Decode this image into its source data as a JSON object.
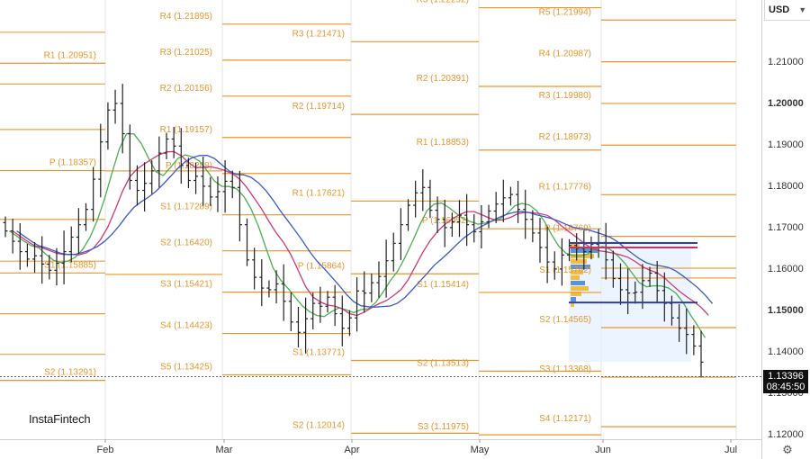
{
  "brand": "InstaFintech",
  "currency": "USD",
  "current_price": {
    "value": "1.13396",
    "time": "08:45:50"
  },
  "settings_icon": "gear-icon",
  "colors": {
    "pivot": "#e8962e",
    "sma_fast": "#4caf50",
    "sma_mid": "#d0387a",
    "sma_slow": "#3a5bc7",
    "profile": "#f5b323",
    "profile_alt": "#3b82d6"
  },
  "chart_data": {
    "type": "bar",
    "instrument": "EUR/USD",
    "ylim": [
      1.118,
      1.224
    ],
    "y_ticks": [
      "1.21000",
      "1.20000",
      "1.19000",
      "1.18000",
      "1.17000",
      "1.16000",
      "1.15000",
      "1.14000",
      "1.13000",
      "1.12000"
    ],
    "y_tick_bold": [
      "1.20000",
      "1.15000"
    ],
    "x_ticks": [
      "Feb",
      "Mar",
      "Apr",
      "May",
      "Jun",
      "Jul"
    ],
    "pivot_sections": [
      {
        "levels": [
          {
            "label": "R1 (1.20951)",
            "value": 1.20951
          },
          {
            "label": "P (1.18357)",
            "value": 1.18357
          },
          {
            "label": "S1 (1.15885)",
            "value": 1.15885
          },
          {
            "label": "S2 (1.13291)",
            "value": 1.13291
          }
        ]
      },
      {
        "levels": [
          {
            "label": "R4 (1.21895)",
            "value": 1.21895
          },
          {
            "label": "R3 (1.21025)",
            "value": 1.21025
          },
          {
            "label": "R2 (1.20156)",
            "value": 1.20156
          },
          {
            "label": "R1 (1.19157)",
            "value": 1.19157
          },
          {
            "label": "P (1.18288)",
            "value": 1.18288
          },
          {
            "label": "S1 (1.17289)",
            "value": 1.17289
          },
          {
            "label": "S2 (1.16420)",
            "value": 1.1642
          },
          {
            "label": "S3 (1.15421)",
            "value": 1.15421
          },
          {
            "label": "S4 (1.14423)",
            "value": 1.14423
          },
          {
            "label": "S5 (1.13425)",
            "value": 1.13425
          }
        ]
      },
      {
        "levels": [
          {
            "label": "R3 (1.21471)",
            "value": 1.21471
          },
          {
            "label": "R2 (1.19714)",
            "value": 1.19714
          },
          {
            "label": "R1 (1.17621)",
            "value": 1.17621
          },
          {
            "label": "P (1.15864)",
            "value": 1.15864
          },
          {
            "label": "S1 (1.13771)",
            "value": 1.13771
          },
          {
            "label": "S2 (1.12014)",
            "value": 1.12014
          }
        ]
      },
      {
        "levels": [
          {
            "label": "R3 (1.22292)",
            "value": 1.22292
          },
          {
            "label": "R2 (1.20391)",
            "value": 1.20391
          },
          {
            "label": "R1 (1.18853)",
            "value": 1.18853
          },
          {
            "label": "P (1.16952)",
            "value": 1.16952
          },
          {
            "label": "S1 (1.15414)",
            "value": 1.15414
          },
          {
            "label": "S2 (1.13513)",
            "value": 1.13513
          },
          {
            "label": "S3 (1.11975)",
            "value": 1.11975
          }
        ]
      },
      {
        "levels": [
          {
            "label": "R5 (1.21994)",
            "value": 1.21994
          },
          {
            "label": "R4 (1.20987)",
            "value": 1.20987
          },
          {
            "label": "R3 (1.19980)",
            "value": 1.1998
          },
          {
            "label": "R2 (1.18973)",
            "value": 1.18973
          },
          {
            "label": "R1 (1.17776)",
            "value": 1.17776
          },
          {
            "label": "P (1.16769)",
            "value": 1.16769
          },
          {
            "label": "S1 (1.15762)",
            "value": 1.15762
          },
          {
            "label": "S2 (1.14565)",
            "value": 1.14565
          },
          {
            "label": "S3 (1.13368)",
            "value": 1.13368
          },
          {
            "label": "S4 (1.12171)",
            "value": 1.12171
          }
        ]
      }
    ],
    "ohlc_close": [
      1.169,
      1.1665,
      1.164,
      1.1622,
      1.163,
      1.161,
      1.1595,
      1.1612,
      1.164,
      1.1675,
      1.1705,
      1.1742,
      1.1815,
      1.1905,
      1.1982,
      1.1998,
      1.1925,
      1.1812,
      1.1788,
      1.1805,
      1.1835,
      1.1878,
      1.1912,
      1.1895,
      1.1848,
      1.1812,
      1.1822,
      1.1798,
      1.1772,
      1.1785,
      1.181,
      1.1795,
      1.1705,
      1.162,
      1.1578,
      1.1552,
      1.1548,
      1.1562,
      1.152,
      1.147,
      1.1445,
      1.1478,
      1.1515,
      1.1508,
      1.153,
      1.149,
      1.1455,
      1.148,
      1.1545,
      1.154,
      1.1565,
      1.158,
      1.1618,
      1.166,
      1.1705,
      1.1752,
      1.1782,
      1.1795,
      1.174,
      1.1718,
      1.1698,
      1.1712,
      1.1728,
      1.1705,
      1.1688,
      1.1712,
      1.1738,
      1.1755,
      1.177,
      1.1778,
      1.1742,
      1.1718,
      1.1685,
      1.165,
      1.1615,
      1.1598,
      1.1632,
      1.1655,
      1.1648,
      1.164,
      1.1658,
      1.1662,
      1.162,
      1.1575,
      1.1548,
      1.154,
      1.1542,
      1.157,
      1.1588,
      1.1546,
      1.1515,
      1.148,
      1.1455,
      1.144,
      1.1412,
      1.1373
    ]
  }
}
